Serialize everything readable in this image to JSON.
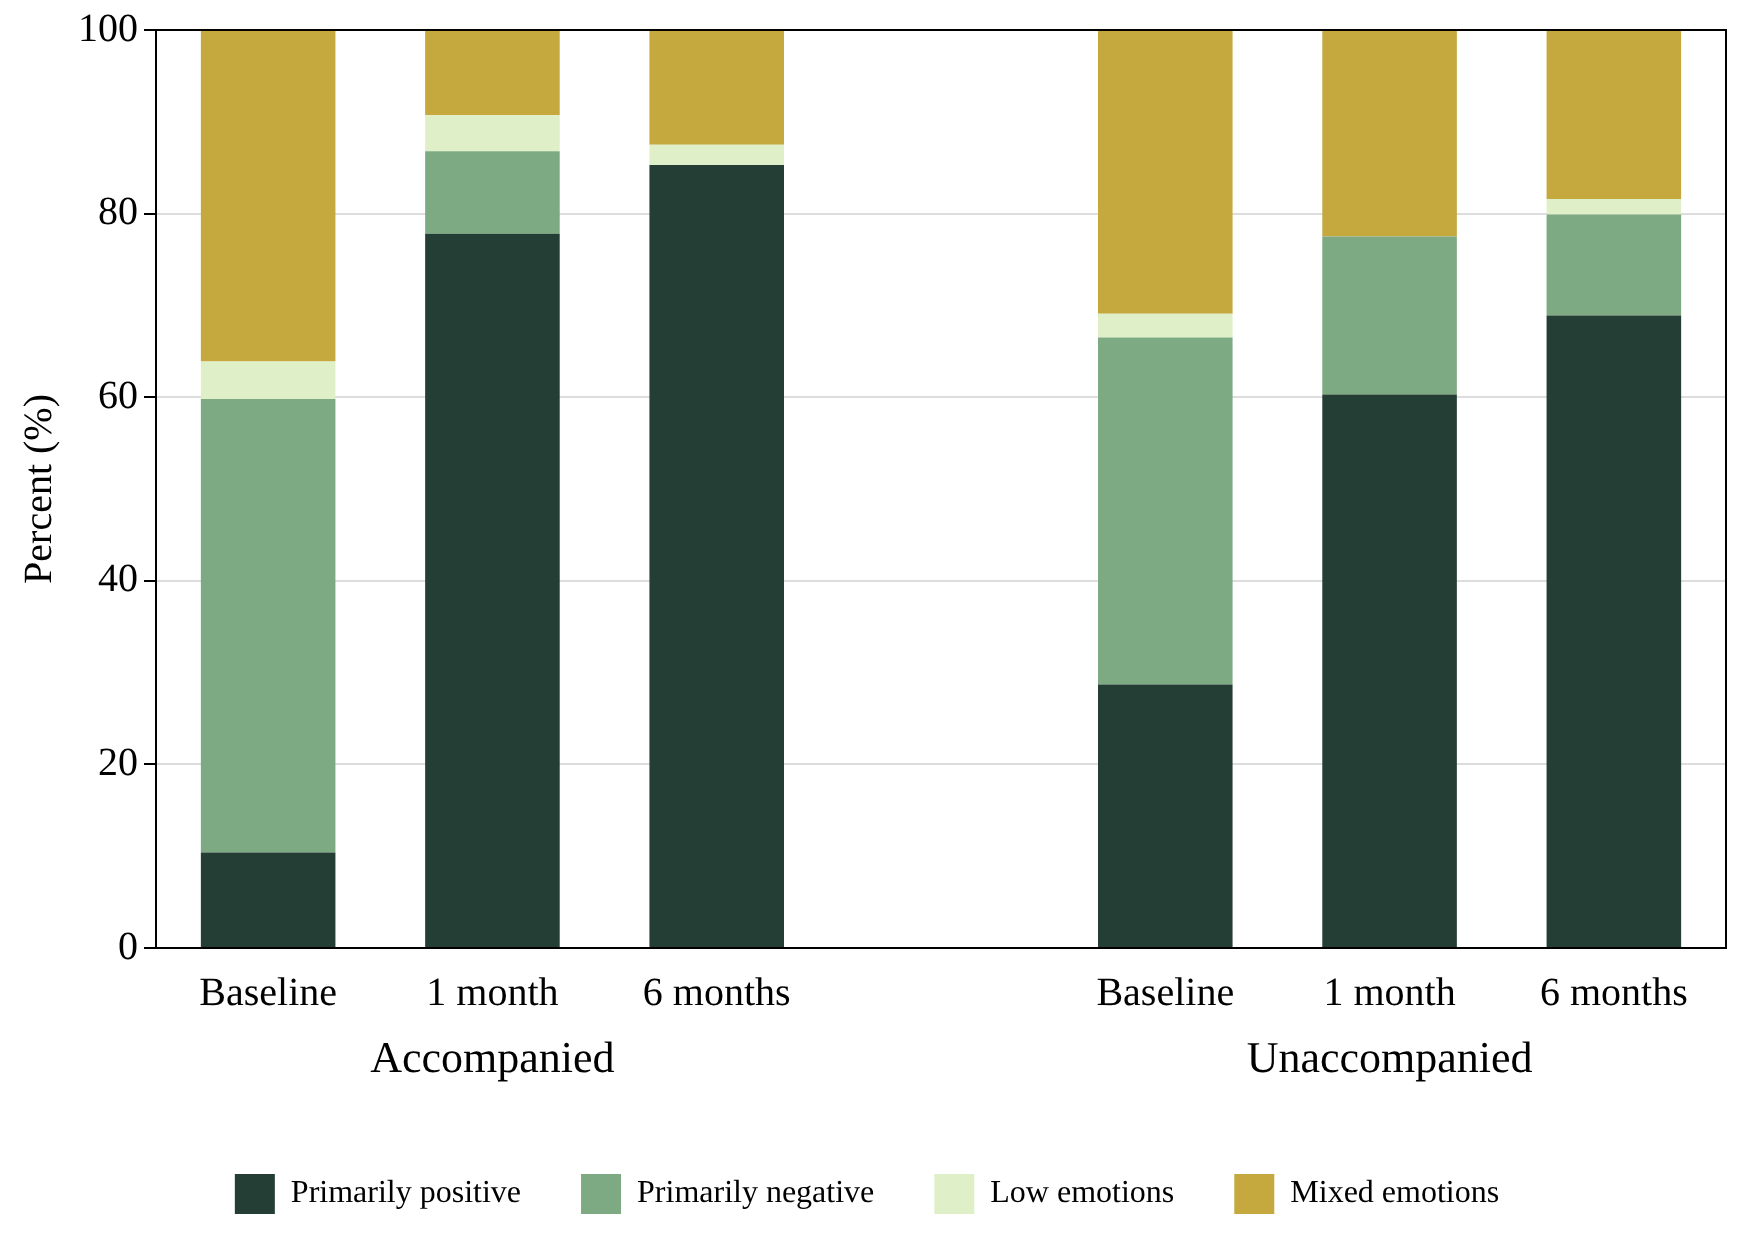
{
  "chart_data": {
    "type": "bar",
    "stacked": true,
    "categories": [
      "Baseline",
      "1 month",
      "6 months",
      null,
      "Baseline",
      "1 month",
      "6 months"
    ],
    "series": [
      {
        "name": "Primarily positive",
        "color": "#243d35",
        "values": [
          10.4,
          77.8,
          85.3,
          null,
          28.7,
          60.3,
          68.9
        ]
      },
      {
        "name": "Primarily negative",
        "color": "#7daa83",
        "values": [
          49.4,
          9.0,
          0,
          null,
          37.8,
          17.2,
          11.0
        ]
      },
      {
        "name": "Low emotions",
        "color": "#dff0c8",
        "values": [
          4.1,
          3.9,
          2.2,
          null,
          2.6,
          0,
          1.7
        ]
      },
      {
        "name": "Mixed emotions",
        "color": "#c5a83e",
        "values": [
          36.1,
          9.3,
          12.5,
          null,
          30.9,
          22.5,
          18.4
        ]
      }
    ],
    "ylabel": "Percent (%)",
    "ylim": [
      0,
      100
    ],
    "yticks": [
      0,
      20,
      40,
      60,
      80,
      100
    ],
    "grid": "y",
    "legend": "bottom",
    "annotations": [
      "Accompanied",
      "Unaccompanied"
    ]
  }
}
